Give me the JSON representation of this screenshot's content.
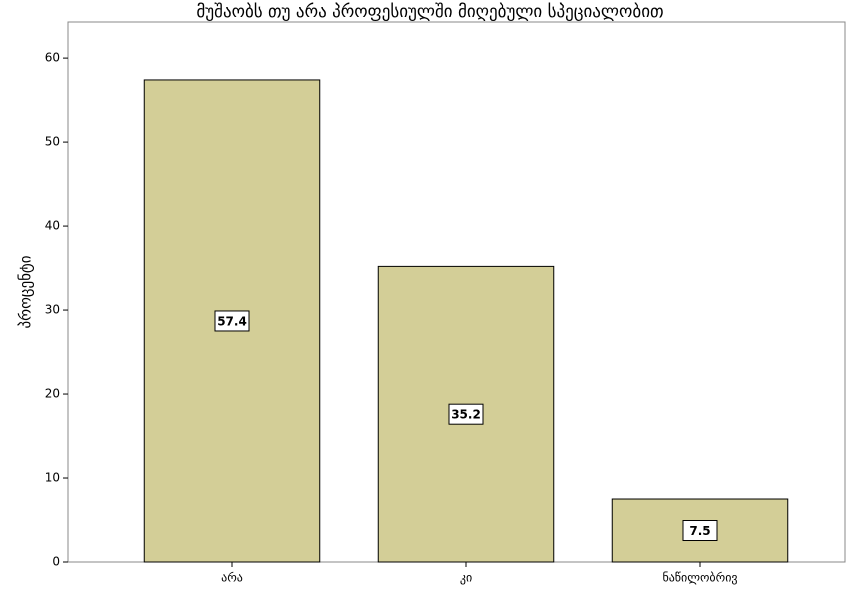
{
  "chart_data": {
    "type": "bar",
    "title": "მუშაობს თუ არა პროფესიულში მიღებული სპეციალობით",
    "y_label": "პროცენტი",
    "categories": [
      "არა",
      "კი",
      "ნაწილობრივ"
    ],
    "values": [
      57.4,
      35.2,
      7.5
    ],
    "color": "#d3ce97",
    "ylim": [
      0,
      64.3
    ],
    "yticks": [
      0,
      10,
      20,
      30,
      40,
      50,
      60
    ],
    "grid": false
  }
}
